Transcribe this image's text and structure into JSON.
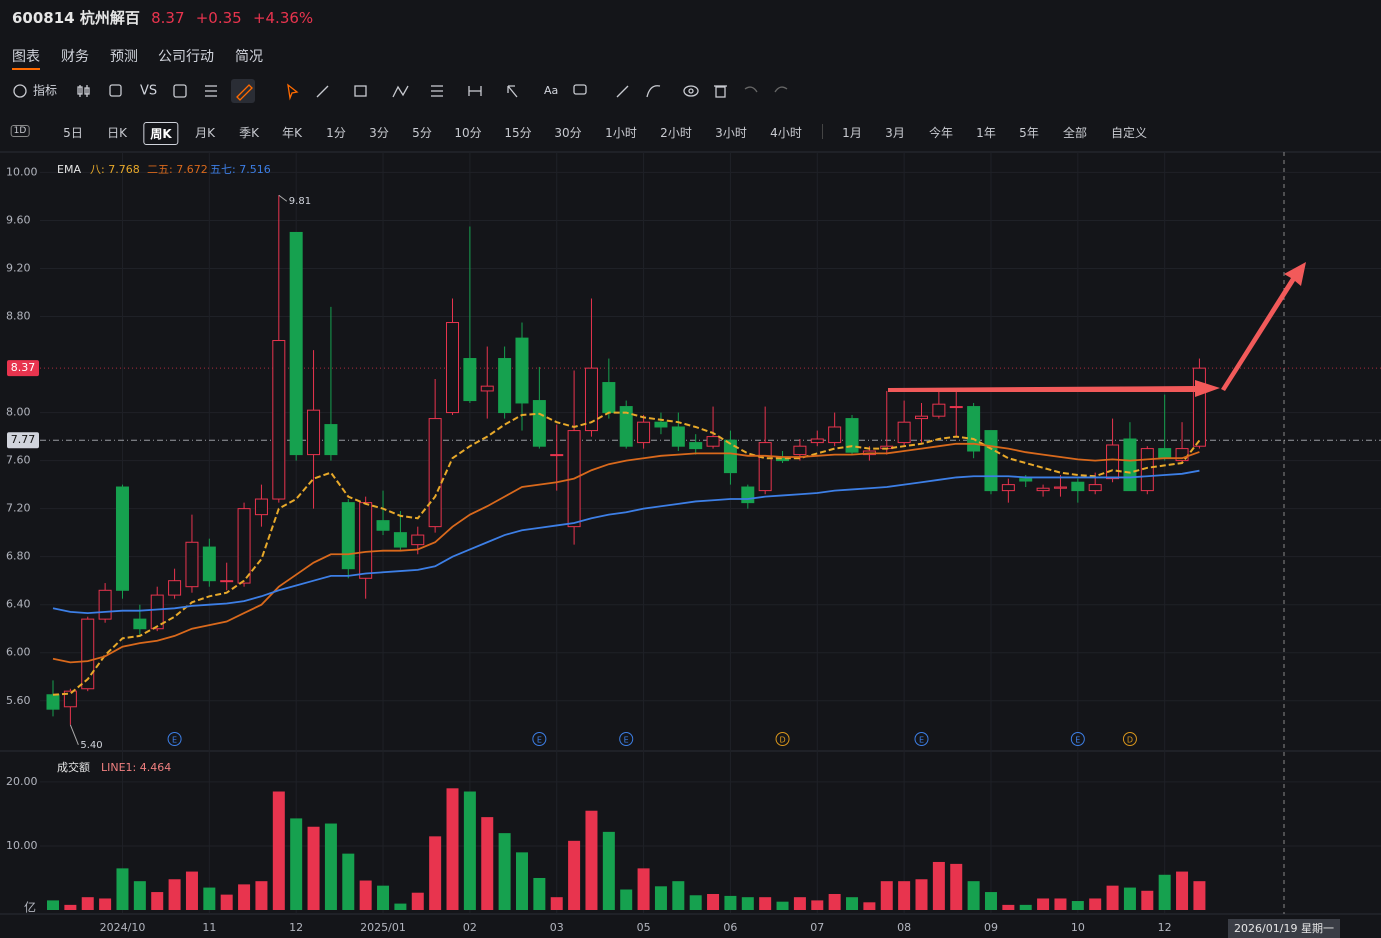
{
  "header": {
    "symbol": "600814 杭州解百",
    "price": "8.37",
    "change": "+0.35",
    "change_pct": "+4.36%"
  },
  "tabs": [
    "图表",
    "财务",
    "预测",
    "公司行动",
    "简况"
  ],
  "toolbar": {
    "indicators": "指标",
    "compare": "VS",
    "text": "Aa"
  },
  "periods": {
    "interval_icon": "1D",
    "items": [
      "5日",
      "日K",
      "周K",
      "月K",
      "季K",
      "年K",
      "1分",
      "3分",
      "5分",
      "10分",
      "15分",
      "30分",
      "1小时",
      "2小时",
      "3小时",
      "4小时",
      "1月",
      "3月",
      "今年",
      "1年",
      "5年",
      "全部",
      "自定义"
    ],
    "selected": 2
  },
  "chart_data": {
    "type": "candlestick",
    "categories": [
      null,
      null,
      null,
      null,
      "2024/10",
      null,
      null,
      null,
      null,
      "11",
      null,
      null,
      null,
      null,
      "12",
      null,
      null,
      null,
      null,
      "2025/01",
      null,
      null,
      null,
      null,
      "02",
      null,
      null,
      null,
      null,
      "03",
      null,
      null,
      null,
      null,
      "05",
      null,
      null,
      null,
      null,
      "06",
      null,
      null,
      null,
      null,
      "07",
      null,
      null,
      null,
      null,
      "08",
      null,
      null,
      null,
      null,
      "09",
      null,
      null,
      null,
      null,
      "10",
      null,
      null,
      null,
      null,
      "12",
      null,
      null
    ],
    "open": [
      5.65,
      5.55,
      5.7,
      6.28,
      7.38,
      6.28,
      6.2,
      6.48,
      6.55,
      6.88,
      6.6,
      6.58,
      7.15,
      7.28,
      9.5,
      7.65,
      7.9,
      7.25,
      6.62,
      7.1,
      7.0,
      6.9,
      7.05,
      8.0,
      8.45,
      8.18,
      8.45,
      8.62,
      8.1,
      7.65,
      7.05,
      7.85,
      8.25,
      8.05,
      7.75,
      7.92,
      7.88,
      7.75,
      7.72,
      7.77,
      7.38,
      7.35,
      7.62,
      7.65,
      7.75,
      7.75,
      7.95,
      7.65,
      7.7,
      7.75,
      7.95,
      7.97,
      8.05,
      8.05,
      7.85,
      7.35,
      7.45,
      7.35,
      7.37,
      7.42,
      7.35,
      7.45,
      7.78,
      7.35,
      7.7,
      7.6,
      7.72
    ],
    "high": [
      5.77,
      5.7,
      6.3,
      6.58,
      7.4,
      6.4,
      6.55,
      6.7,
      7.15,
      6.95,
      6.75,
      7.25,
      7.4,
      9.81,
      9.5,
      8.52,
      8.88,
      7.28,
      7.3,
      7.35,
      7.18,
      7.05,
      8.28,
      8.95,
      9.55,
      8.55,
      8.55,
      8.75,
      8.38,
      7.9,
      8.35,
      8.95,
      8.45,
      8.1,
      7.98,
      8.0,
      8.0,
      7.82,
      8.05,
      7.85,
      7.4,
      8.05,
      7.68,
      7.78,
      7.85,
      8.0,
      7.98,
      7.72,
      8.18,
      8.1,
      8.08,
      8.2,
      8.2,
      8.08,
      7.85,
      7.45,
      7.48,
      7.4,
      7.48,
      7.45,
      7.5,
      7.95,
      7.92,
      7.72,
      8.15,
      7.92,
      8.45
    ],
    "low": [
      5.47,
      5.4,
      5.68,
      6.25,
      6.45,
      6.15,
      6.18,
      6.45,
      6.5,
      6.55,
      6.52,
      6.55,
      7.05,
      7.25,
      7.6,
      7.2,
      7.6,
      6.62,
      6.45,
      6.98,
      6.85,
      6.82,
      7.0,
      7.98,
      8.08,
      7.95,
      7.95,
      7.85,
      7.7,
      7.35,
      6.9,
      7.8,
      7.95,
      7.7,
      7.7,
      7.82,
      7.68,
      7.65,
      7.7,
      7.4,
      7.2,
      7.32,
      7.58,
      7.6,
      7.72,
      7.72,
      7.65,
      7.6,
      7.65,
      7.72,
      7.75,
      7.95,
      7.8,
      7.62,
      7.32,
      7.25,
      7.38,
      7.3,
      7.3,
      7.25,
      7.32,
      7.42,
      7.35,
      7.32,
      7.6,
      7.58,
      7.7
    ],
    "close": [
      5.53,
      5.68,
      6.28,
      6.52,
      6.52,
      6.2,
      6.48,
      6.6,
      6.92,
      6.6,
      6.6,
      7.2,
      7.28,
      8.6,
      7.65,
      8.02,
      7.65,
      6.7,
      7.25,
      7.02,
      6.88,
      6.98,
      7.95,
      8.75,
      8.1,
      8.22,
      8.0,
      8.08,
      7.72,
      7.65,
      7.85,
      8.37,
      8.0,
      7.72,
      7.92,
      7.88,
      7.72,
      7.7,
      7.8,
      7.5,
      7.25,
      7.75,
      7.6,
      7.72,
      7.78,
      7.88,
      7.67,
      7.68,
      7.72,
      7.92,
      7.97,
      8.07,
      8.05,
      7.68,
      7.35,
      7.4,
      7.43,
      7.37,
      7.38,
      7.35,
      7.4,
      7.73,
      7.35,
      7.7,
      7.62,
      7.7,
      8.37
    ],
    "up_color": "#e8344e",
    "down_color": "#16a14f",
    "ylim": [
      5.19,
      10.17
    ],
    "yticks": [
      {
        "value": 5.6,
        "label": "5.60"
      },
      {
        "value": 6,
        "label": "6.00"
      },
      {
        "value": 6.4,
        "label": "6.40"
      },
      {
        "value": 6.8,
        "label": "6.80"
      },
      {
        "value": 7.2,
        "label": "7.20"
      },
      {
        "value": 7.6,
        "label": "7.60"
      },
      {
        "value": 8,
        "label": "8.00"
      },
      {
        "value": 8.8,
        "label": "8.80"
      },
      {
        "value": 9.2,
        "label": "9.20"
      },
      {
        "value": 9.6,
        "label": "9.60"
      },
      {
        "value": 10,
        "label": "10.00"
      }
    ],
    "grid": true,
    "indicator": "EMA",
    "series": [
      {
        "name": "八",
        "label": "八: 7.768",
        "color": "#e8a92a",
        "dashed": true,
        "values": [
          5.65,
          5.66,
          5.78,
          5.98,
          6.12,
          6.14,
          6.22,
          6.3,
          6.42,
          6.47,
          6.5,
          6.6,
          6.78,
          7.2,
          7.28,
          7.45,
          7.5,
          7.3,
          7.24,
          7.2,
          7.14,
          7.12,
          7.3,
          7.62,
          7.72,
          7.8,
          7.9,
          7.98,
          7.99,
          7.92,
          7.88,
          7.92,
          8.0,
          8.0,
          7.96,
          7.94,
          7.92,
          7.88,
          7.83,
          7.74,
          7.66,
          7.62,
          7.62,
          7.62,
          7.66,
          7.7,
          7.72,
          7.7,
          7.7,
          7.72,
          7.74,
          7.78,
          7.8,
          7.78,
          7.7,
          7.62,
          7.58,
          7.54,
          7.5,
          7.48,
          7.47,
          7.52,
          7.5,
          7.54,
          7.56,
          7.58,
          7.768
        ]
      },
      {
        "name": "二五",
        "label": "二五: 7.672",
        "color": "#d9691c",
        "dashed": false,
        "values": [
          5.95,
          5.92,
          5.93,
          5.97,
          6.05,
          6.08,
          6.1,
          6.14,
          6.2,
          6.23,
          6.26,
          6.33,
          6.4,
          6.55,
          6.65,
          6.75,
          6.82,
          6.82,
          6.84,
          6.85,
          6.85,
          6.86,
          6.92,
          7.05,
          7.15,
          7.22,
          7.3,
          7.38,
          7.4,
          7.42,
          7.45,
          7.52,
          7.57,
          7.6,
          7.62,
          7.64,
          7.65,
          7.66,
          7.66,
          7.66,
          7.64,
          7.64,
          7.63,
          7.63,
          7.64,
          7.65,
          7.65,
          7.66,
          7.66,
          7.68,
          7.7,
          7.72,
          7.74,
          7.74,
          7.72,
          7.7,
          7.67,
          7.65,
          7.63,
          7.61,
          7.6,
          7.61,
          7.6,
          7.61,
          7.62,
          7.62,
          7.672
        ]
      },
      {
        "name": "五七",
        "label": "五七: 7.516",
        "color": "#3d7fe6",
        "dashed": false,
        "values": [
          6.37,
          6.34,
          6.33,
          6.34,
          6.35,
          6.35,
          6.36,
          6.37,
          6.39,
          6.4,
          6.41,
          6.43,
          6.47,
          6.52,
          6.56,
          6.6,
          6.64,
          6.64,
          6.66,
          6.67,
          6.68,
          6.69,
          6.72,
          6.8,
          6.86,
          6.92,
          6.98,
          7.02,
          7.04,
          7.06,
          7.08,
          7.12,
          7.15,
          7.17,
          7.2,
          7.22,
          7.24,
          7.26,
          7.27,
          7.28,
          7.28,
          7.3,
          7.31,
          7.32,
          7.33,
          7.35,
          7.36,
          7.37,
          7.38,
          7.4,
          7.42,
          7.44,
          7.46,
          7.47,
          7.47,
          7.47,
          7.46,
          7.46,
          7.46,
          7.46,
          7.46,
          7.46,
          7.46,
          7.47,
          7.48,
          7.49,
          7.516
        ]
      }
    ],
    "annotations": [
      {
        "index": 13,
        "value": 9.81,
        "label": "9.81"
      },
      {
        "index": 1,
        "value": 5.4,
        "label": "5.40"
      }
    ],
    "price_markers": [
      {
        "value": 8.37,
        "label": "8.37",
        "color": "#e8344e"
      },
      {
        "value": 7.77,
        "label": "7.77",
        "color": "#d1d4dc"
      }
    ],
    "events": [
      {
        "index": 7,
        "label": "E"
      },
      {
        "index": 28,
        "label": "E"
      },
      {
        "index": 33,
        "label": "E"
      },
      {
        "index": 42,
        "label": "D"
      },
      {
        "index": 50,
        "label": "E"
      },
      {
        "index": 59,
        "label": "E"
      },
      {
        "index": 62,
        "label": "D"
      }
    ],
    "crosshair_label": "2026/01/19 星期一",
    "volume": {
      "title": "成交额",
      "line_label": "LINE1: 4.464",
      "unit": "亿",
      "ylim": [
        0,
        24.2
      ],
      "yticks": [
        {
          "value": 10,
          "label": "10.00"
        },
        {
          "value": 20,
          "label": "20.00"
        }
      ],
      "values": [
        1.5,
        0.8,
        2.0,
        1.8,
        6.5,
        4.5,
        2.8,
        4.8,
        6.0,
        3.5,
        2.4,
        4.0,
        4.5,
        18.5,
        14.3,
        13.0,
        13.5,
        8.8,
        4.6,
        3.8,
        1.0,
        2.7,
        11.5,
        19.0,
        18.5,
        14.5,
        12.0,
        9.0,
        5.0,
        2.0,
        10.8,
        15.5,
        12.2,
        3.2,
        6.5,
        3.7,
        4.5,
        2.3,
        2.5,
        2.2,
        2.0,
        2.0,
        1.3,
        2.0,
        1.5,
        2.5,
        2.0,
        1.2,
        4.5,
        4.5,
        4.8,
        7.5,
        7.2,
        4.5,
        2.8,
        0.8,
        0.8,
        1.8,
        1.8,
        1.4,
        1.8,
        3.8,
        3.5,
        3.0,
        5.5,
        6.0,
        4.5
      ]
    }
  }
}
